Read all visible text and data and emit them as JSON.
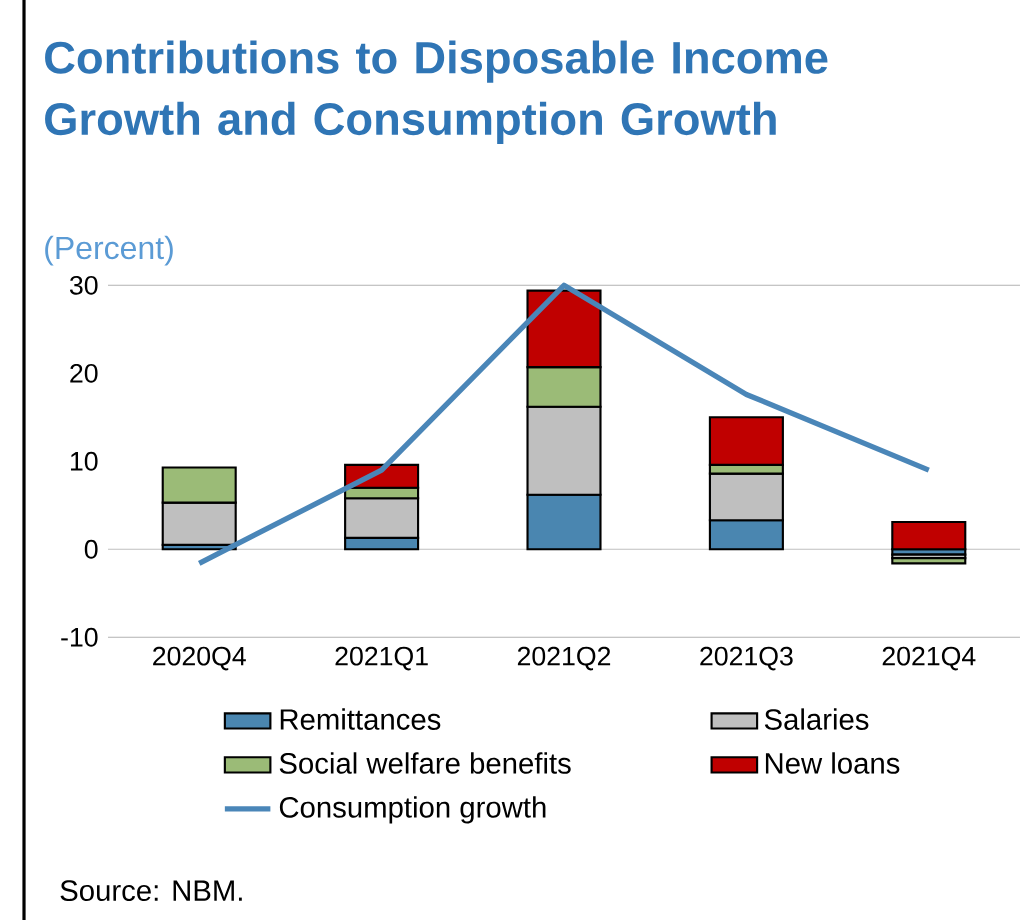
{
  "chart_data": {
    "type": "bar",
    "stacked": true,
    "title": "Contributions to Disposable Income Growth and Consumption Growth",
    "subtitle": "(Percent)",
    "categories": [
      "2020Q4",
      "2021Q1",
      "2021Q2",
      "2021Q3",
      "2021Q4"
    ],
    "series": [
      {
        "name": "Remittances",
        "color": "#4a86b0",
        "values": [
          0.5,
          1.3,
          6.2,
          3.3,
          -0.6
        ]
      },
      {
        "name": "Salaries",
        "color": "#bfbfbf",
        "values": [
          4.8,
          4.5,
          10.0,
          5.3,
          -0.4
        ]
      },
      {
        "name": "Social welfare benefits",
        "color": "#9bbb77",
        "values": [
          4.0,
          1.2,
          4.5,
          1.0,
          -0.6
        ]
      },
      {
        "name": "New loans",
        "color": "#c00000",
        "values": [
          null,
          2.6,
          8.7,
          5.4,
          3.1
        ]
      },
      {
        "name": "Consumption growth",
        "type": "line",
        "color": "#4a86b8",
        "values": [
          -1.6,
          9.0,
          30.0,
          17.6,
          9.0
        ]
      }
    ],
    "ylim": [
      -10,
      30
    ],
    "yticks": [
      -10,
      0,
      10,
      20,
      30
    ],
    "grid": false,
    "legend": "bottom",
    "ref_lines": [
      {
        "axis": "y",
        "value": 0,
        "color": "#bfbfbf"
      }
    ],
    "annotations": [
      "Source: NBM."
    ]
  }
}
